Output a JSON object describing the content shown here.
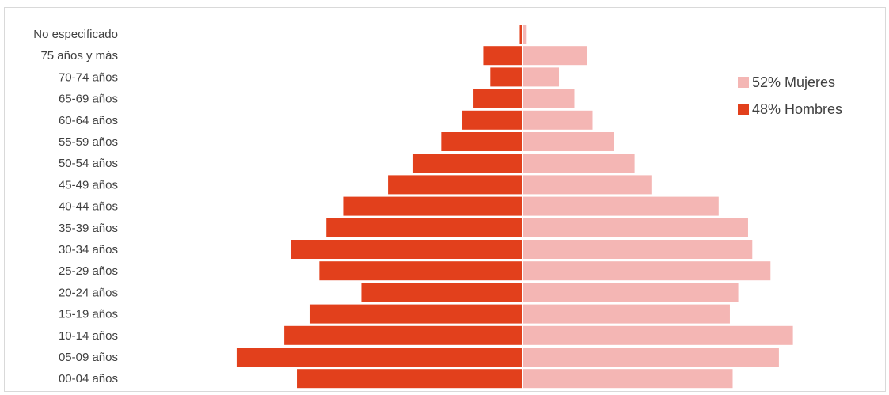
{
  "chart_data": {
    "type": "bar",
    "orientation": "horizontal",
    "subtype": "population-pyramid",
    "title": "",
    "xlabel": "",
    "ylabel": "",
    "categories": [
      "No especificado",
      "75 años y más",
      "70-74 años",
      "65-69 años",
      "60-64 años",
      "55-59 años",
      "50-54 años",
      "45-49 años",
      "40-44 años",
      "35-39 años",
      "30-34 años",
      "25-29 años",
      "20-24 años",
      "15-19 años",
      "10-14 años",
      "05-09 años",
      "00-04 años"
    ],
    "series": [
      {
        "name": "52% Mujeres",
        "side": "right",
        "color": "#f4b6b4",
        "values": [
          0.3,
          4.6,
          2.6,
          3.7,
          5.0,
          6.5,
          8.0,
          9.2,
          14.0,
          16.1,
          16.4,
          17.7,
          15.4,
          14.8,
          19.3,
          18.3,
          15.0
        ]
      },
      {
        "name": "48% Hombres",
        "side": "left",
        "color": "#e2401c",
        "values": [
          0.2,
          2.8,
          2.3,
          3.5,
          4.3,
          5.8,
          7.8,
          9.6,
          12.8,
          14.0,
          16.5,
          14.5,
          11.5,
          15.2,
          17.0,
          20.4,
          16.1
        ]
      }
    ],
    "xlim": [
      -21,
      21
    ],
    "grid": false,
    "legend_position": "right"
  }
}
